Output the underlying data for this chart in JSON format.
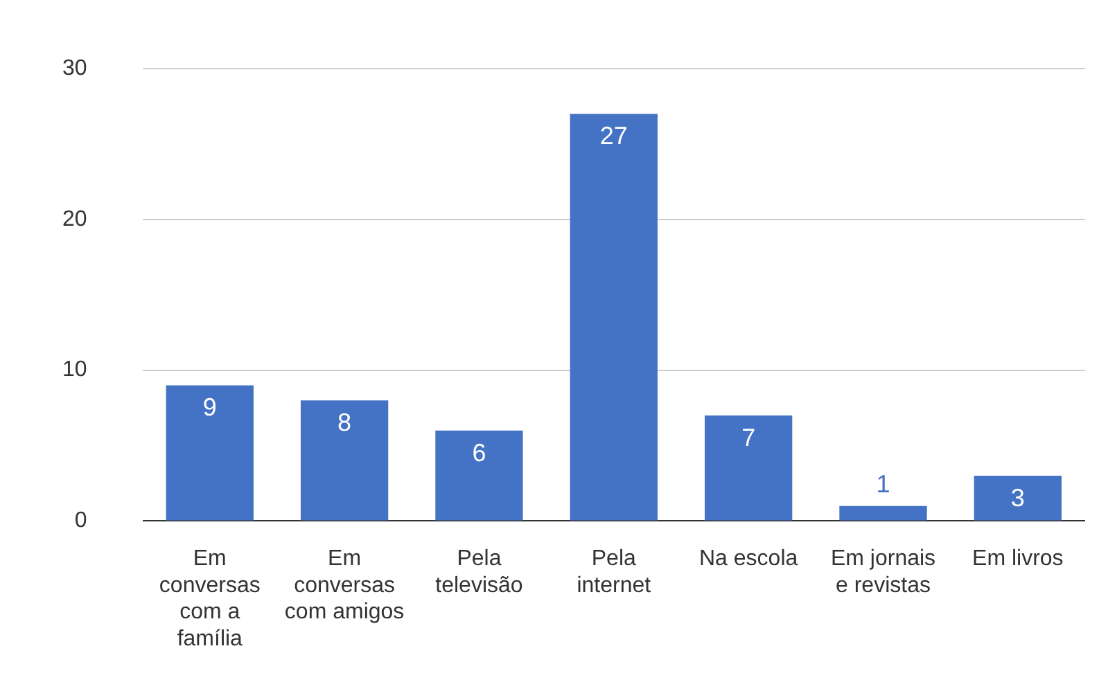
{
  "chart_data": {
    "type": "bar",
    "categories": [
      "Em conversas com a família",
      "Em conversas com amigos",
      "Pela televisão",
      "Pela internet",
      "Na escola",
      "Em jornais e revistas",
      "Em livros"
    ],
    "values": [
      9,
      8,
      6,
      27,
      7,
      1,
      3
    ],
    "color": "#4472c4",
    "ylim": [
      0,
      30
    ],
    "yticks": [
      0,
      10,
      20,
      30
    ],
    "grid": "y",
    "data_labels": true
  }
}
